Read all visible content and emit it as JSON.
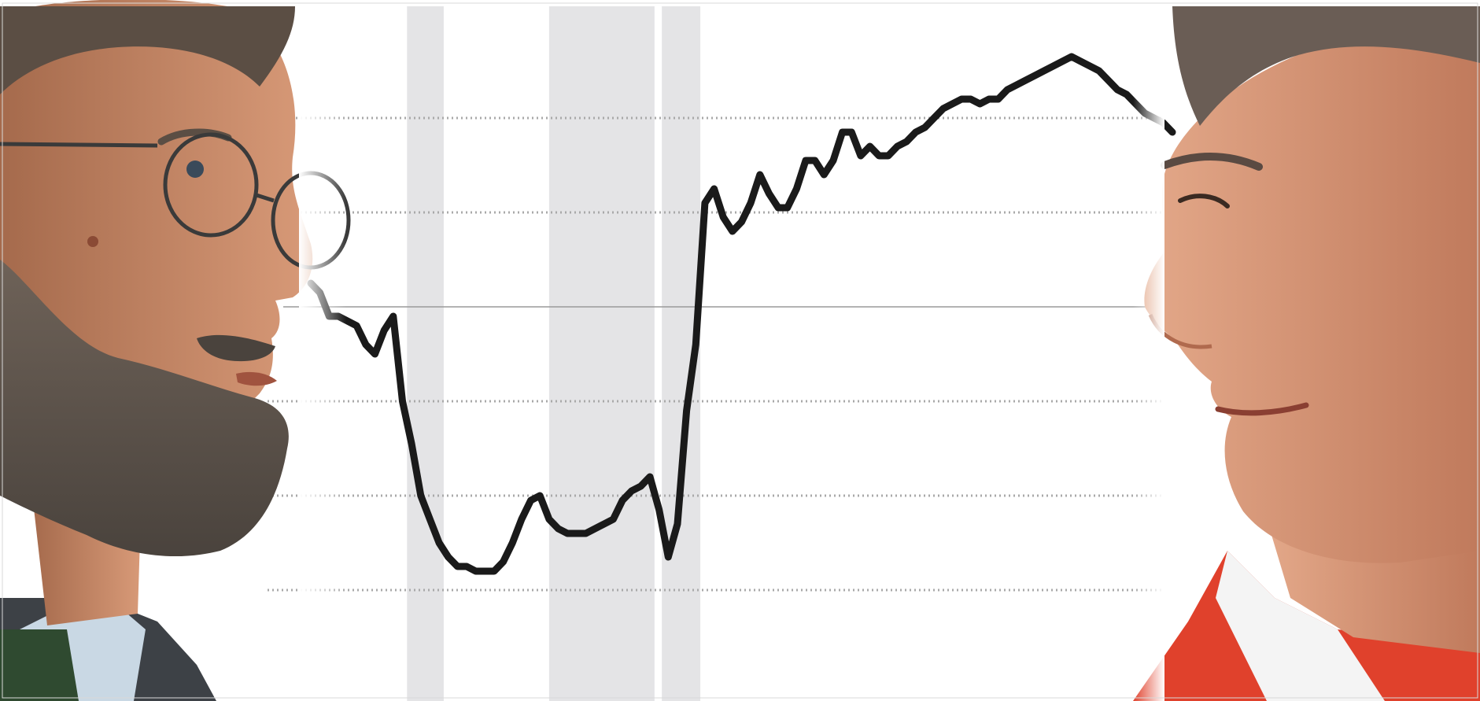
{
  "chart_data": {
    "type": "line",
    "title": "",
    "xlabel": "",
    "ylabel": "",
    "grid": true,
    "legend": "none",
    "tick_labels": [],
    "ylim": [
      0,
      7
    ],
    "baseline": 4,
    "gridlines": [
      1,
      2,
      3,
      5,
      6
    ],
    "x_range": [
      0,
      94
    ],
    "shaded_periods": [
      [
        10.5,
        14.5
      ],
      [
        26,
        37.5
      ],
      [
        38.3,
        42.5
      ]
    ],
    "series": [
      {
        "name": "",
        "color": "#1a1a1a",
        "x": [
          0,
          1,
          2,
          3,
          4,
          5,
          6,
          7,
          8,
          9,
          10,
          11,
          12,
          13,
          14,
          15,
          16,
          17,
          18,
          19,
          20,
          21,
          22,
          23,
          24,
          25,
          26,
          27,
          28,
          29,
          30,
          31,
          32,
          33,
          34,
          35,
          36,
          37,
          38,
          39,
          40,
          41,
          42,
          43,
          44,
          45,
          46,
          47,
          48,
          49,
          50,
          51,
          52,
          53,
          54,
          55,
          56,
          57,
          58,
          59,
          60,
          61,
          62,
          63,
          64,
          65,
          66,
          67,
          68,
          69,
          70,
          71,
          72,
          73,
          74,
          75,
          76,
          77,
          78,
          79,
          80,
          81,
          82,
          83,
          84,
          85,
          86,
          87,
          88,
          89,
          90,
          91,
          92,
          93,
          94
        ],
        "values": [
          4.25,
          4.15,
          3.9,
          3.9,
          3.85,
          3.8,
          3.6,
          3.5,
          3.75,
          3.9,
          3.0,
          2.55,
          2.0,
          1.75,
          1.5,
          1.35,
          1.25,
          1.25,
          1.2,
          1.2,
          1.2,
          1.3,
          1.5,
          1.75,
          1.95,
          2.0,
          1.75,
          1.65,
          1.6,
          1.6,
          1.6,
          1.65,
          1.7,
          1.75,
          1.95,
          2.05,
          2.1,
          2.2,
          1.85,
          1.35,
          1.7,
          2.9,
          3.6,
          5.1,
          5.25,
          4.95,
          4.8,
          4.9,
          5.1,
          5.4,
          5.2,
          5.05,
          5.05,
          5.25,
          5.55,
          5.55,
          5.4,
          5.55,
          5.85,
          5.85,
          5.6,
          5.7,
          5.6,
          5.6,
          5.7,
          5.75,
          5.85,
          5.9,
          6.0,
          6.1,
          6.15,
          6.2,
          6.2,
          6.15,
          6.2,
          6.2,
          6.3,
          6.35,
          6.4,
          6.45,
          6.5,
          6.55,
          6.6,
          6.65,
          6.6,
          6.55,
          6.5,
          6.4,
          6.3,
          6.25,
          6.15,
          6.05,
          6.0,
          5.95,
          5.85
        ]
      }
    ]
  },
  "portraits": {
    "left": {
      "icon": "bearded-man-glasses-profile-icon",
      "suit_color": "#3d4146",
      "shirt_color": "#c9d8e4",
      "tie_color": "#2f4a30"
    },
    "right": {
      "icon": "smiling-man-profile-icon",
      "jacket_color": "#e0412c",
      "shirt_color": "#f4f4f4"
    }
  },
  "colors": {
    "band": "#e4e4e6",
    "grid": "#a9a9a9",
    "baseline": "#9a9a9a",
    "line": "#1a1a1a"
  }
}
